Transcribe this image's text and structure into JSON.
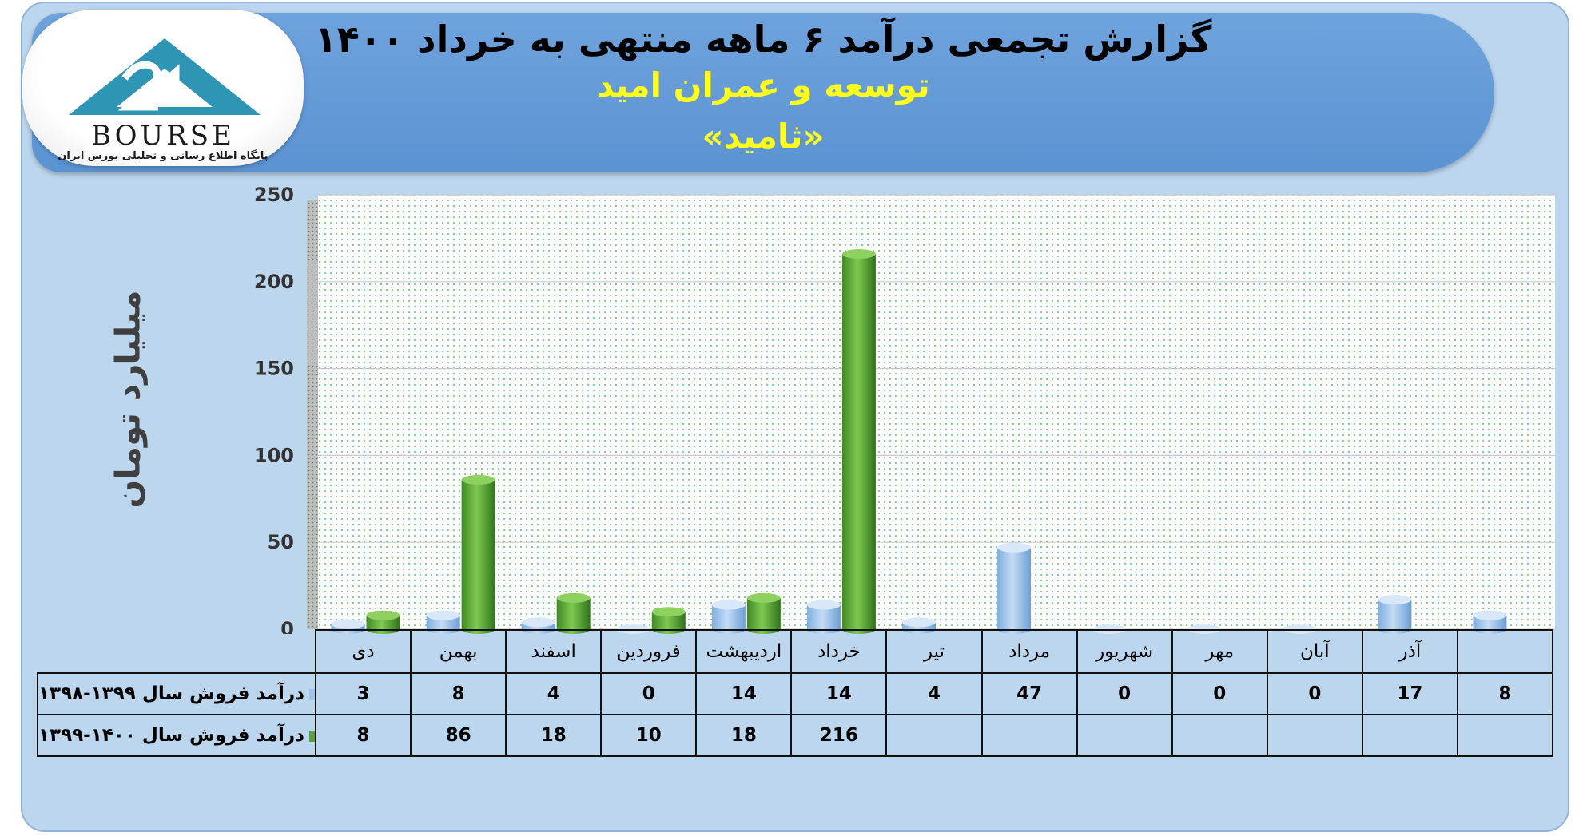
{
  "title": {
    "main": "گزارش تجمعی درآمد ۶ ماهه منتهی به خرداد ۱۴۰۰",
    "company": "توسعه و عمران امید",
    "symbol": "«ثامید»"
  },
  "logo": {
    "text": "BOURSE",
    "subtitle": "پایگاه اطلاع رسانی و تحلیلی بورس ایران",
    "icon": "triangle-logo-icon"
  },
  "colors": {
    "frame_bg": "#bcd6ee",
    "banner": "#5b93d2",
    "title_highlight": "#ffff1a",
    "series_1398_1399": "#9ec3ea",
    "series_1399_1400": "#5aa331"
  },
  "chart_data": {
    "type": "bar",
    "title": "گزارش تجمعی درآمد ۶ ماهه منتهی به خرداد ۱۴۰۰",
    "ylabel": "میلیارد تومان",
    "ylim": [
      0,
      250
    ],
    "yticks": [
      0,
      50,
      100,
      150,
      200,
      250
    ],
    "grid": true,
    "legend": "in data table, left of rows",
    "categories": [
      "دی",
      "بهمن",
      "اسفند",
      "فروردین",
      "اردیبهشت",
      "خرداد",
      "تیر",
      "مرداد",
      "شهریور",
      "مهر",
      "آبان",
      "آذر",
      ""
    ],
    "series": [
      {
        "name": "درآمد فروش سال ۱۳۹۹-۱۳۹۸",
        "color": "#9ec3ea",
        "values": [
          3,
          8,
          4,
          0,
          14,
          14,
          4,
          47,
          0,
          0,
          0,
          17,
          8
        ]
      },
      {
        "name": "درآمد فروش سال ۱۴۰۰-۱۳۹۹",
        "color": "#5aa331",
        "values": [
          8,
          86,
          18,
          10,
          18,
          216,
          null,
          null,
          null,
          null,
          null,
          null,
          null
        ]
      }
    ]
  }
}
